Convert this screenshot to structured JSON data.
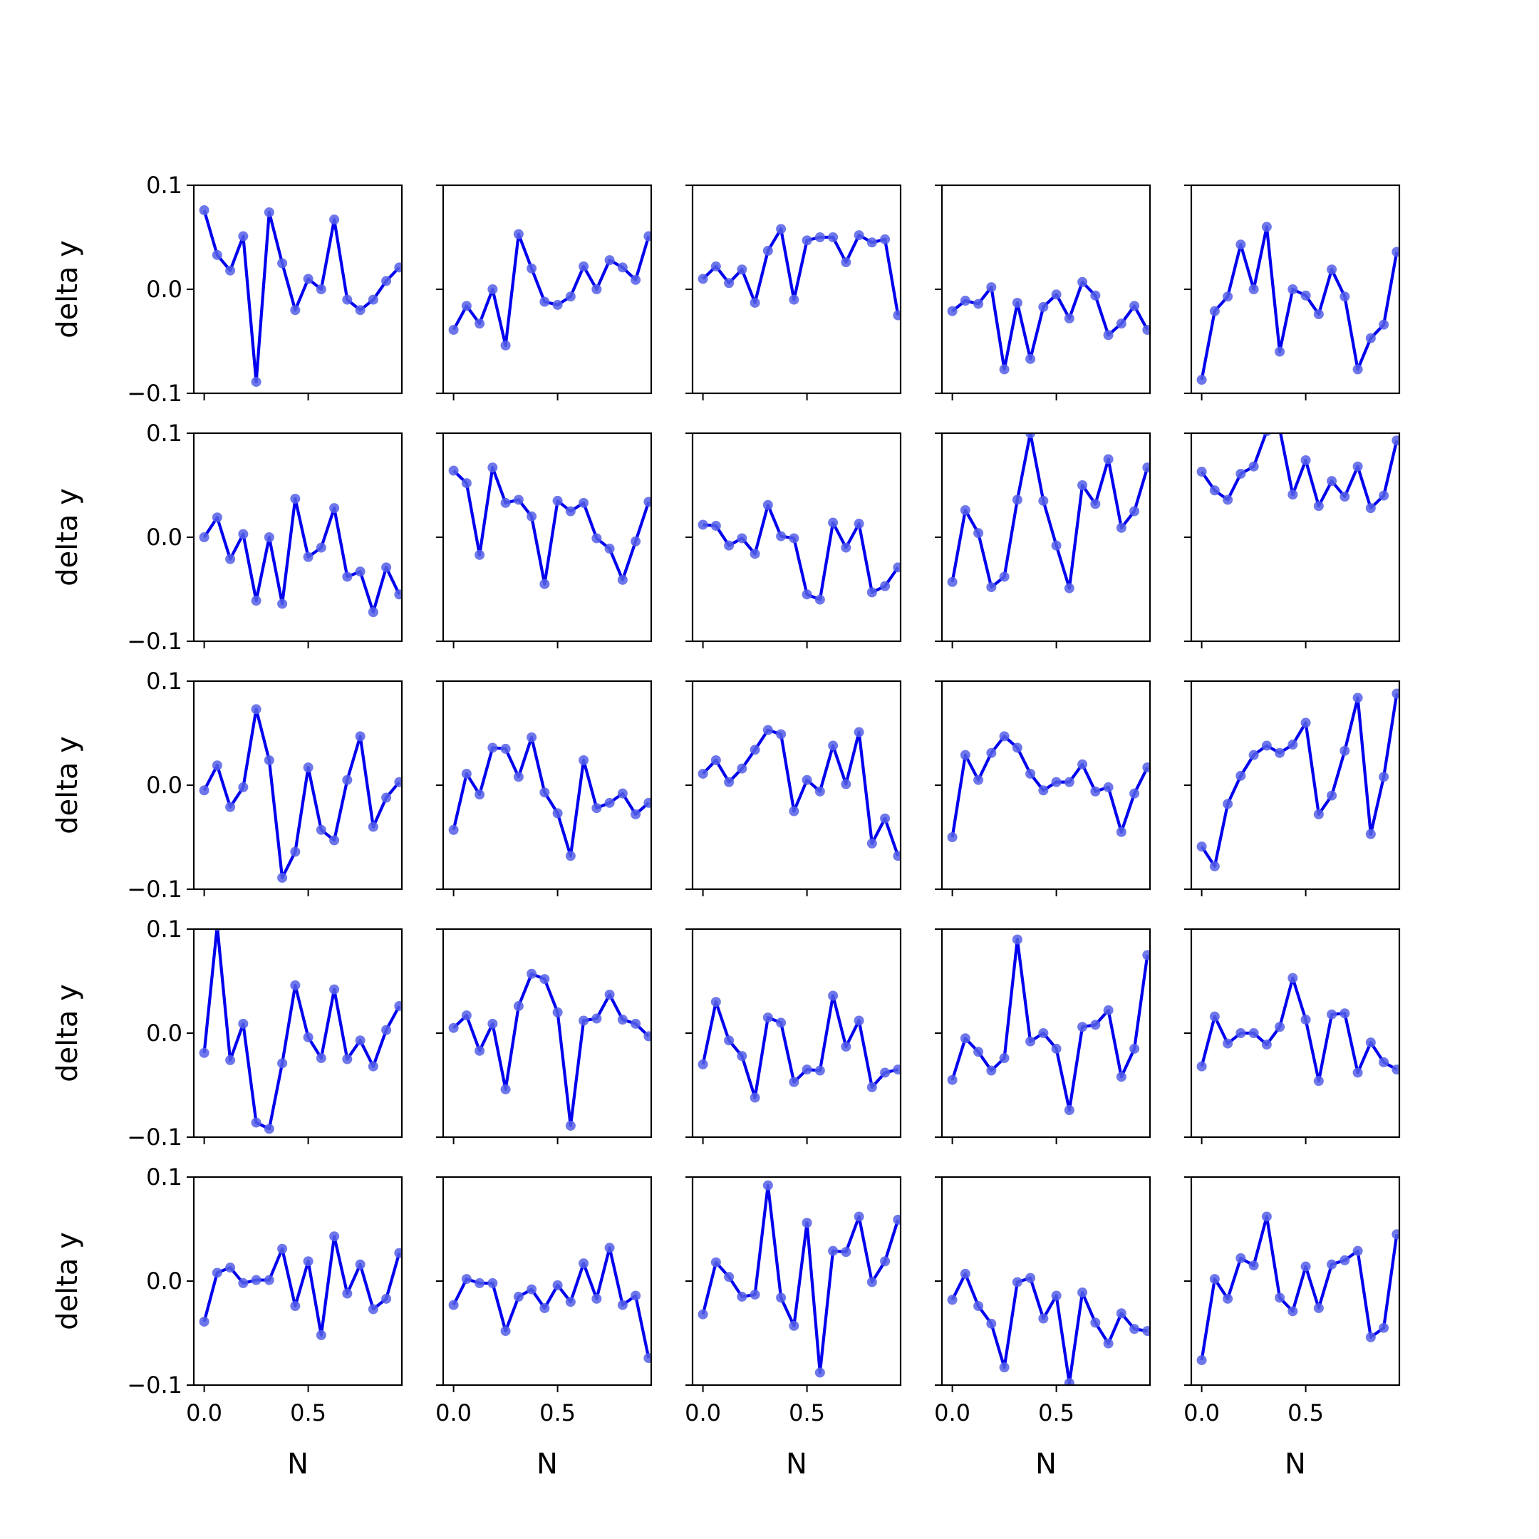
{
  "chart_data": {
    "type": "line",
    "layout": "5x5 grid of subplots",
    "xlabel": "N",
    "ylabel": "delta y",
    "xlim": [
      -0.05,
      0.95
    ],
    "ylim": [
      -0.1,
      0.1
    ],
    "x_ticks": [
      0.0,
      0.5
    ],
    "x_tick_labels": [
      "0.0",
      "0.5"
    ],
    "y_ticks": [
      -0.1,
      0.0,
      0.1
    ],
    "y_tick_labels": [
      "−0.1",
      "0.0",
      "0.1"
    ],
    "grid": false,
    "line_color": "#0000ee",
    "marker_color": "#5560e6",
    "x": [
      0.0,
      0.0625,
      0.125,
      0.1875,
      0.25,
      0.3125,
      0.375,
      0.4375,
      0.5,
      0.5625,
      0.625,
      0.6875,
      0.75,
      0.8125,
      0.875,
      0.9375
    ],
    "subplots": [
      {
        "row": 1,
        "col": 1,
        "values": [
          0.076,
          0.033,
          0.018,
          0.051,
          -0.089,
          0.074,
          0.025,
          -0.02,
          0.01,
          0.0,
          0.067,
          -0.01,
          -0.02,
          -0.01,
          0.008,
          0.021
        ]
      },
      {
        "row": 1,
        "col": 2,
        "values": [
          -0.039,
          -0.016,
          -0.033,
          0.0,
          -0.054,
          0.053,
          0.02,
          -0.012,
          -0.015,
          -0.007,
          0.022,
          0.0,
          0.028,
          0.021,
          0.009,
          0.051
        ]
      },
      {
        "row": 1,
        "col": 3,
        "values": [
          0.01,
          0.022,
          0.006,
          0.019,
          -0.013,
          0.037,
          0.058,
          -0.01,
          0.047,
          0.05,
          0.05,
          0.026,
          0.052,
          0.045,
          0.048,
          -0.025
        ]
      },
      {
        "row": 1,
        "col": 4,
        "values": [
          -0.021,
          -0.011,
          -0.014,
          0.002,
          -0.077,
          -0.013,
          -0.067,
          -0.017,
          -0.005,
          -0.028,
          0.007,
          -0.006,
          -0.044,
          -0.033,
          -0.016,
          -0.039
        ]
      },
      {
        "row": 1,
        "col": 5,
        "values": [
          -0.087,
          -0.021,
          -0.007,
          0.043,
          0.0,
          0.06,
          -0.06,
          0.0,
          -0.006,
          -0.024,
          0.019,
          -0.007,
          -0.077,
          -0.047,
          -0.034,
          0.036
        ]
      },
      {
        "row": 2,
        "col": 1,
        "values": [
          0.0,
          0.019,
          -0.021,
          0.003,
          -0.061,
          0.0,
          -0.064,
          0.037,
          -0.019,
          -0.01,
          0.028,
          -0.038,
          -0.033,
          -0.072,
          -0.029,
          -0.055
        ]
      },
      {
        "row": 2,
        "col": 2,
        "values": [
          0.064,
          0.052,
          -0.017,
          0.067,
          0.033,
          0.036,
          0.02,
          -0.045,
          0.035,
          0.025,
          0.033,
          -0.001,
          -0.011,
          -0.041,
          -0.004,
          0.034
        ]
      },
      {
        "row": 2,
        "col": 3,
        "values": [
          0.012,
          0.011,
          -0.008,
          -0.001,
          -0.016,
          0.031,
          0.001,
          -0.001,
          -0.055,
          -0.06,
          0.014,
          -0.01,
          0.013,
          -0.053,
          -0.047,
          -0.029
        ]
      },
      {
        "row": 2,
        "col": 4,
        "values": [
          -0.043,
          0.026,
          0.004,
          -0.048,
          -0.038,
          0.036,
          0.1,
          0.035,
          -0.008,
          -0.049,
          0.05,
          0.032,
          0.075,
          0.009,
          0.025,
          0.067
        ]
      },
      {
        "row": 2,
        "col": 5,
        "values": [
          0.063,
          0.045,
          0.036,
          0.061,
          0.068,
          0.102,
          0.104,
          0.041,
          0.074,
          0.03,
          0.054,
          0.039,
          0.068,
          0.028,
          0.04,
          0.093
        ]
      },
      {
        "row": 3,
        "col": 1,
        "values": [
          -0.005,
          0.019,
          -0.021,
          -0.002,
          0.073,
          0.024,
          -0.089,
          -0.064,
          0.017,
          -0.043,
          -0.053,
          0.005,
          0.047,
          -0.04,
          -0.012,
          0.003
        ]
      },
      {
        "row": 3,
        "col": 2,
        "values": [
          -0.043,
          0.011,
          -0.009,
          0.036,
          0.035,
          0.008,
          0.046,
          -0.007,
          -0.027,
          -0.068,
          0.024,
          -0.022,
          -0.017,
          -0.008,
          -0.028,
          -0.017
        ]
      },
      {
        "row": 3,
        "col": 3,
        "values": [
          0.011,
          0.024,
          0.003,
          0.016,
          0.034,
          0.053,
          0.049,
          -0.025,
          0.005,
          -0.006,
          0.038,
          0.001,
          0.051,
          -0.056,
          -0.032,
          -0.068
        ]
      },
      {
        "row": 3,
        "col": 4,
        "values": [
          -0.05,
          0.029,
          0.005,
          0.031,
          0.047,
          0.036,
          0.011,
          -0.005,
          0.003,
          0.003,
          0.02,
          -0.006,
          -0.002,
          -0.045,
          -0.008,
          0.017
        ]
      },
      {
        "row": 3,
        "col": 5,
        "values": [
          -0.059,
          -0.078,
          -0.018,
          0.009,
          0.029,
          0.038,
          0.031,
          0.039,
          0.06,
          -0.028,
          -0.01,
          0.033,
          0.084,
          -0.047,
          0.008,
          0.088
        ]
      },
      {
        "row": 4,
        "col": 1,
        "values": [
          -0.019,
          0.103,
          -0.026,
          0.009,
          -0.086,
          -0.092,
          -0.029,
          0.046,
          -0.004,
          -0.024,
          0.042,
          -0.025,
          -0.007,
          -0.032,
          0.003,
          0.026
        ]
      },
      {
        "row": 4,
        "col": 2,
        "values": [
          0.005,
          0.017,
          -0.017,
          0.009,
          -0.054,
          0.026,
          0.057,
          0.052,
          0.02,
          -0.089,
          0.012,
          0.014,
          0.037,
          0.013,
          0.009,
          -0.003
        ]
      },
      {
        "row": 4,
        "col": 3,
        "values": [
          -0.03,
          0.03,
          -0.007,
          -0.022,
          -0.062,
          0.015,
          0.01,
          -0.047,
          -0.035,
          -0.036,
          0.036,
          -0.013,
          0.012,
          -0.052,
          -0.038,
          -0.035
        ]
      },
      {
        "row": 4,
        "col": 4,
        "values": [
          -0.045,
          -0.005,
          -0.018,
          -0.036,
          -0.024,
          0.09,
          -0.008,
          0.0,
          -0.015,
          -0.074,
          0.006,
          0.008,
          0.022,
          -0.042,
          -0.015,
          0.075
        ]
      },
      {
        "row": 4,
        "col": 5,
        "values": [
          -0.032,
          0.016,
          -0.01,
          0.0,
          0.0,
          -0.011,
          0.006,
          0.053,
          0.013,
          -0.046,
          0.018,
          0.019,
          -0.038,
          -0.009,
          -0.028,
          -0.035
        ]
      },
      {
        "row": 5,
        "col": 1,
        "values": [
          -0.039,
          0.008,
          0.013,
          -0.002,
          0.001,
          0.001,
          0.031,
          -0.024,
          0.019,
          -0.052,
          0.043,
          -0.012,
          0.016,
          -0.027,
          -0.017,
          0.027
        ]
      },
      {
        "row": 5,
        "col": 2,
        "values": [
          -0.023,
          0.002,
          -0.002,
          -0.002,
          -0.048,
          -0.015,
          -0.008,
          -0.026,
          -0.004,
          -0.02,
          0.017,
          -0.017,
          0.032,
          -0.023,
          -0.014,
          -0.074
        ]
      },
      {
        "row": 5,
        "col": 3,
        "values": [
          -0.032,
          0.018,
          0.004,
          -0.015,
          -0.013,
          0.092,
          -0.016,
          -0.043,
          0.056,
          -0.088,
          0.029,
          0.028,
          0.062,
          -0.001,
          0.019,
          0.059
        ]
      },
      {
        "row": 5,
        "col": 4,
        "values": [
          -0.018,
          0.007,
          -0.024,
          -0.041,
          -0.083,
          -0.001,
          0.003,
          -0.036,
          -0.014,
          -0.098,
          -0.011,
          -0.04,
          -0.06,
          -0.031,
          -0.046,
          -0.048
        ]
      },
      {
        "row": 5,
        "col": 5,
        "values": [
          -0.076,
          0.002,
          -0.017,
          0.022,
          0.015,
          0.062,
          -0.016,
          -0.029,
          0.014,
          -0.026,
          0.016,
          0.02,
          0.029,
          -0.054,
          -0.045,
          0.045
        ]
      }
    ]
  }
}
